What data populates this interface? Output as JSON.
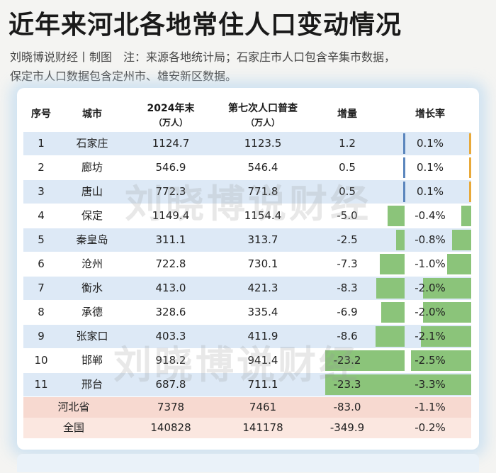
{
  "title": "近年来河北各地常住人口变动情况",
  "subtitle_line1": "刘晓博说财经丨制图　注：来源各地统计局；石家庄市人口包含辛集市数据，",
  "subtitle_line2": "保定市人口数据包含定州市、雄安新区数据。",
  "watermark": "刘晓博说财经",
  "headers": {
    "index": "序号",
    "city": "城市",
    "pop2024": "2024年末",
    "pop2024_unit": "（万人）",
    "census": "第七次人口普查",
    "census_unit": "（万人）",
    "increase": "增量",
    "rate": "增长率"
  },
  "colors": {
    "row_highlight": "#dde9f6",
    "province_row": "#f7d9d0",
    "negative_bar": "#8bc47a",
    "positive_increase_bar": "#5b86bd",
    "positive_rate_bar": "#e8a93a"
  },
  "rows": [
    {
      "idx": "1",
      "city": "石家庄",
      "pop2024": "1124.7",
      "census": "1123.5",
      "increase": "1.2",
      "rate": "0.1%"
    },
    {
      "idx": "2",
      "city": "廊坊",
      "pop2024": "546.9",
      "census": "546.4",
      "increase": "0.5",
      "rate": "0.1%"
    },
    {
      "idx": "3",
      "city": "唐山",
      "pop2024": "772.3",
      "census": "771.8",
      "increase": "0.5",
      "rate": "0.1%"
    },
    {
      "idx": "4",
      "city": "保定",
      "pop2024": "1149.4",
      "census": "1154.4",
      "increase": "-5.0",
      "rate": "-0.4%"
    },
    {
      "idx": "5",
      "city": "秦皇岛",
      "pop2024": "311.1",
      "census": "313.7",
      "increase": "-2.5",
      "rate": "-0.8%"
    },
    {
      "idx": "6",
      "city": "沧州",
      "pop2024": "722.8",
      "census": "730.1",
      "increase": "-7.3",
      "rate": "-1.0%"
    },
    {
      "idx": "7",
      "city": "衡水",
      "pop2024": "413.0",
      "census": "421.3",
      "increase": "-8.3",
      "rate": "-2.0%"
    },
    {
      "idx": "8",
      "city": "承德",
      "pop2024": "328.6",
      "census": "335.4",
      "increase": "-6.9",
      "rate": "-2.0%"
    },
    {
      "idx": "9",
      "city": "张家口",
      "pop2024": "403.3",
      "census": "411.9",
      "increase": "-8.6",
      "rate": "-2.1%"
    },
    {
      "idx": "10",
      "city": "邯郸",
      "pop2024": "918.2",
      "census": "941.4",
      "increase": "-23.2",
      "rate": "-2.5%"
    },
    {
      "idx": "11",
      "city": "邢台",
      "pop2024": "687.8",
      "census": "711.1",
      "increase": "-23.3",
      "rate": "-3.3%"
    }
  ],
  "summary_rows": [
    {
      "name": "河北省",
      "pop2024": "7378",
      "census": "7461",
      "increase": "-83.0",
      "rate": "-1.1%"
    },
    {
      "name": "全国",
      "pop2024": "140828",
      "census": "141178",
      "increase": "-349.9",
      "rate": "-0.2%"
    }
  ]
}
